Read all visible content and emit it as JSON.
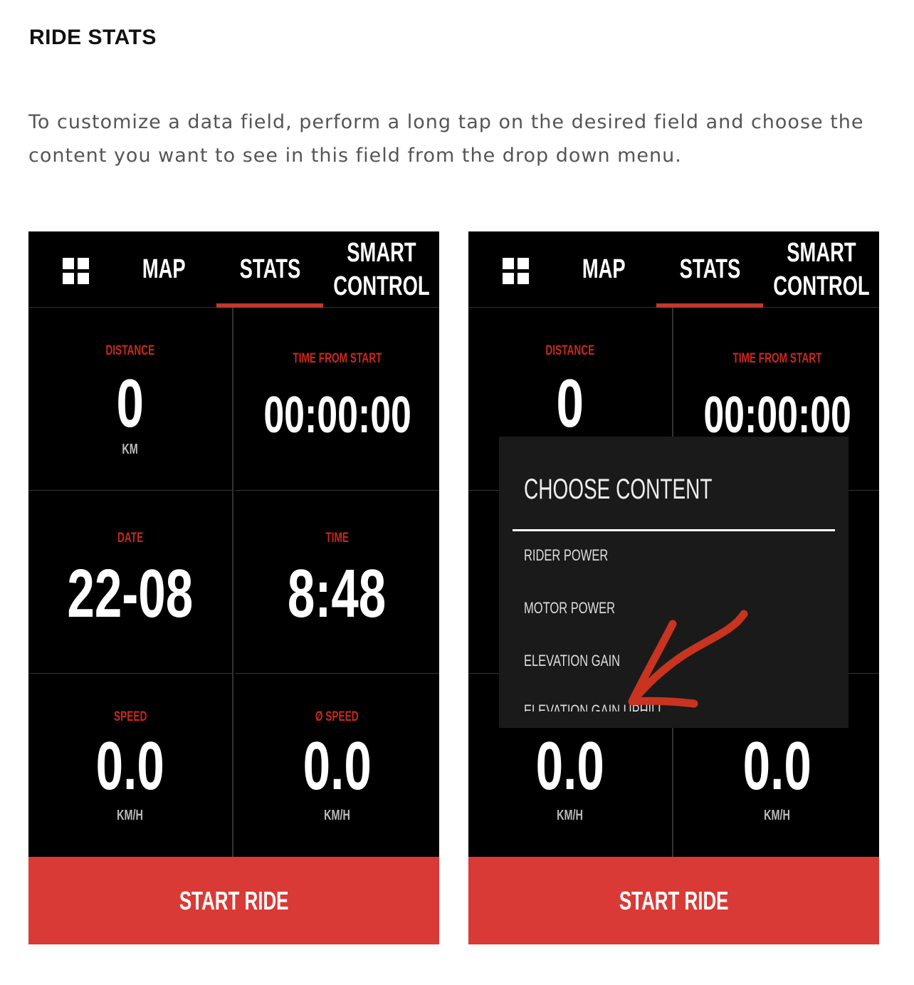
{
  "page": {
    "title": "RIDE STATS",
    "description": "To customize a data field, perform a long tap on the desired field and choose the content you want to see in this field from the drop down menu."
  },
  "tabs": {
    "grid_icon": "grid-icon",
    "map": "MAP",
    "stats": "STATS",
    "smart_control_1": "SMART",
    "smart_control_2": "CONTROL",
    "active": "STATS"
  },
  "fields": {
    "distance": {
      "label": "DISTANCE",
      "value": "0",
      "unit": "KM"
    },
    "time_from_start": {
      "label": "TIME FROM START",
      "value": "00:00:00"
    },
    "date": {
      "label": "DATE",
      "value": "22-08"
    },
    "time": {
      "label": "TIME",
      "value": "8:48"
    },
    "speed": {
      "label": "SPEED",
      "value": "0.0",
      "unit": "KM/H"
    },
    "avg_speed": {
      "label": "Ø SPEED",
      "value": "0.0",
      "unit": "KM/H"
    }
  },
  "start_button": "START RIDE",
  "popup": {
    "title": "CHOOSE CONTENT",
    "items": [
      "RIDER POWER",
      "MOTOR POWER",
      "ELEVATION GAIN",
      "ELEVATION GAIN UPHILL"
    ]
  },
  "colors": {
    "accent": "#d93a35",
    "label_red": "#c8281e",
    "background": "#000000",
    "popup_bg": "#1a1a1a",
    "annotation": "#c8341f"
  }
}
